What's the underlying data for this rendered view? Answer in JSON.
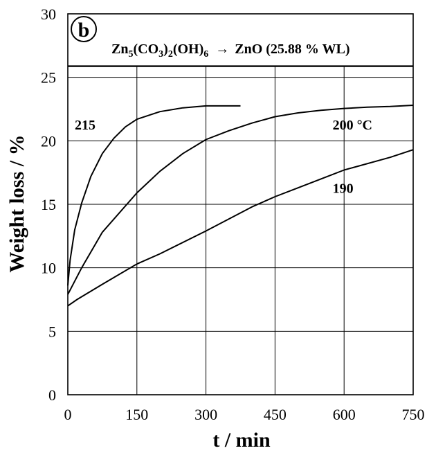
{
  "chart_data": {
    "type": "line",
    "panel_label": "b",
    "annotation": {
      "reactant": {
        "base": "Zn",
        "sub1": "5",
        "mid1": "(CO",
        "sub2": "3",
        "mid2": ")",
        "sub3": "2",
        "mid3": "(OH)",
        "sub4": "6"
      },
      "arrow": "→",
      "product": "ZnO (25.88 % WL)",
      "reference_value": 25.88
    },
    "xlabel": "t / min",
    "ylabel": "Weight loss / %",
    "xlim": [
      0,
      750
    ],
    "ylim": [
      0,
      30
    ],
    "xticks": [
      0,
      150,
      300,
      450,
      600,
      750
    ],
    "yticks": [
      0,
      5,
      10,
      15,
      20,
      25,
      30
    ],
    "grid": true,
    "series": [
      {
        "name": "215",
        "x": [
          0,
          5,
          15,
          30,
          50,
          75,
          100,
          125,
          150,
          200,
          250,
          300,
          375
        ],
        "y": [
          8.6,
          10.6,
          13.0,
          15.1,
          17.2,
          19.0,
          20.2,
          21.1,
          21.7,
          22.3,
          22.6,
          22.75,
          22.75
        ]
      },
      {
        "name": "200 °C",
        "x": [
          0,
          30,
          75,
          150,
          200,
          250,
          300,
          350,
          400,
          450,
          500,
          550,
          600,
          650,
          700,
          750
        ],
        "y": [
          7.9,
          10.0,
          12.8,
          15.9,
          17.6,
          19.0,
          20.1,
          20.8,
          21.4,
          21.9,
          22.2,
          22.4,
          22.55,
          22.65,
          22.7,
          22.8
        ]
      },
      {
        "name": "190",
        "x": [
          0,
          20,
          75,
          150,
          200,
          300,
          400,
          450,
          500,
          600,
          700,
          750
        ],
        "y": [
          7.0,
          7.5,
          8.7,
          10.3,
          11.1,
          12.9,
          14.8,
          15.6,
          16.3,
          17.7,
          18.7,
          19.3
        ]
      }
    ]
  }
}
